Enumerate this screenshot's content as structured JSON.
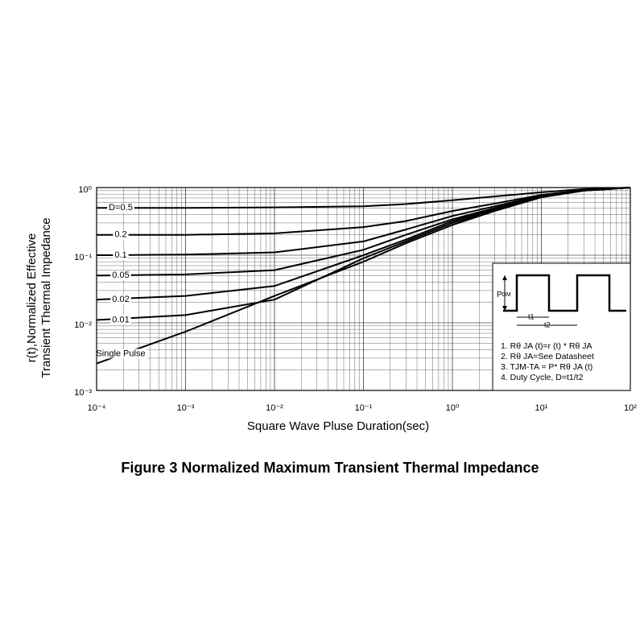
{
  "chart_data": {
    "type": "line",
    "caption": "Figure 3 Normalized Maximum Transient Thermal Impedance",
    "xlabel": "Square Wave Pluse Duration(sec)",
    "ylabel": [
      "r(t),Normalized Effective",
      "Transient Thermal Impedance"
    ],
    "xscale": "log",
    "yscale": "log",
    "grid": true,
    "xlim": [
      0.0001,
      100
    ],
    "ylim": [
      0.001,
      1
    ],
    "xticks": [
      {
        "value": 0.0001,
        "label": "10⁻⁴"
      },
      {
        "value": 0.001,
        "label": "10⁻³"
      },
      {
        "value": 0.01,
        "label": "10⁻²"
      },
      {
        "value": 0.1,
        "label": "10⁻¹"
      },
      {
        "value": 1,
        "label": "10⁰"
      },
      {
        "value": 10,
        "label": "10¹"
      },
      {
        "value": 100,
        "label": "10²"
      }
    ],
    "yticks": [
      {
        "value": 0.001,
        "label": "10⁻³"
      },
      {
        "value": 0.01,
        "label": "10⁻²"
      },
      {
        "value": 0.1,
        "label": "10⁻¹"
      },
      {
        "value": 1,
        "label": "10⁰"
      }
    ],
    "x": [
      0.0001,
      0.001,
      0.01,
      0.1,
      0.3,
      1,
      3,
      10,
      30,
      100
    ],
    "series": [
      {
        "name": "D=0.5",
        "color": "#000000",
        "values": [
          0.5,
          0.5,
          0.51,
          0.53,
          0.57,
          0.65,
          0.74,
          0.85,
          0.95,
          1
        ]
      },
      {
        "name": "0.2",
        "color": "#000000",
        "values": [
          0.2,
          0.2,
          0.21,
          0.26,
          0.32,
          0.45,
          0.58,
          0.78,
          0.92,
          1
        ]
      },
      {
        "name": "0.1",
        "color": "#000000",
        "values": [
          0.1,
          0.102,
          0.11,
          0.16,
          0.24,
          0.38,
          0.53,
          0.76,
          0.91,
          1
        ]
      },
      {
        "name": "0.05",
        "color": "#000000",
        "values": [
          0.05,
          0.052,
          0.06,
          0.12,
          0.2,
          0.34,
          0.5,
          0.75,
          0.9,
          1
        ]
      },
      {
        "name": "0.02",
        "color": "#000000",
        "values": [
          0.022,
          0.025,
          0.035,
          0.1,
          0.17,
          0.32,
          0.48,
          0.73,
          0.9,
          1
        ]
      },
      {
        "name": "0.01",
        "color": "#000000",
        "values": [
          0.011,
          0.013,
          0.022,
          0.09,
          0.16,
          0.3,
          0.46,
          0.72,
          0.9,
          1
        ]
      },
      {
        "name": "Single Pulse",
        "color": "#000000",
        "values": [
          0.0025,
          0.0074,
          0.025,
          0.08,
          0.15,
          0.28,
          0.45,
          0.72,
          0.9,
          1
        ]
      }
    ],
    "inset": {
      "pulse_label": "P",
      "pulse_sub": "DM",
      "t1": "t1",
      "t2": "t2",
      "notes": [
        "1. Rθ JA (t)=r (t) * Rθ JA",
        "2. Rθ JA=See Datasheet",
        "3. TJM-TA = P* Rθ JA (t)",
        "4. Duty Cycle, D=t1/t2"
      ]
    }
  }
}
